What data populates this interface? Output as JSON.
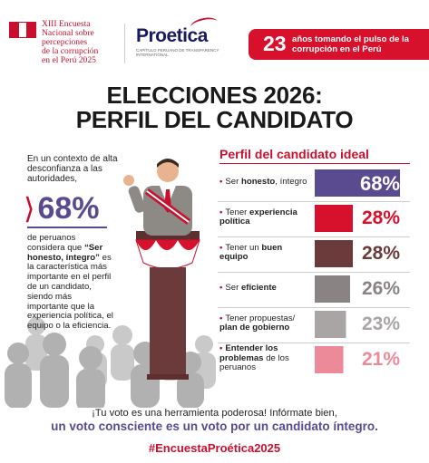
{
  "header": {
    "survey_lines": [
      "XIII Encuesta",
      "Nacional sobre",
      "percepciones",
      "de la corrupción",
      "en el Perú 2025"
    ],
    "logo_text": "Proetica",
    "logo_sub": "CAPÍTULO PERUANO DE TRANSPARENCY INTERNATIONAL",
    "banner_number": "23",
    "banner_text": "años tomando el pulso de la corrupción en el Perú",
    "banner_color": "#d7102c"
  },
  "title_line1": "ELECCIONES 2026:",
  "title_line2": "PERFIL DEL CANDIDATO",
  "left": {
    "intro": "En un contexto de alta desconfianza a las autoridades,",
    "highlight": "68%",
    "body_pre": "de peruanos considera que ",
    "body_bold": "“Ser honesto, íntegro”",
    "body_post": " es la característica más importante en el perfil de un candidato, siendo más importante que la experiencia política, el equipo o la eficiencia."
  },
  "chart_data": {
    "type": "bar",
    "title": "Perfil del candidato ideal",
    "orientation": "horizontal",
    "categories": [
      "Ser honesto, íntegro",
      "Tener experiencia política",
      "Tener un buen equipo",
      "Ser eficiente",
      "Tener propuestas/ plan de gobierno",
      "Entender los problemas de los peruanos"
    ],
    "values": [
      68,
      28,
      28,
      26,
      23,
      21
    ],
    "value_labels": [
      "68%",
      "28%",
      "28%",
      "26%",
      "23%",
      "21%"
    ],
    "colors": [
      "#5a4a8f",
      "#d7102c",
      "#6b3a3a",
      "#8a8383",
      "#aaa5a5",
      "#ec8a9a"
    ],
    "label_parts": [
      {
        "pre": "Ser ",
        "bold": "honesto",
        "post": ", íntegro"
      },
      {
        "pre": "Tener ",
        "bold": "experiencia política",
        "post": ""
      },
      {
        "pre": "Tener un ",
        "bold": "buen equipo",
        "post": ""
      },
      {
        "pre": "Ser ",
        "bold": "eficiente",
        "post": ""
      },
      {
        "pre": "Tener propuestas/ ",
        "bold": "plan de gobierno",
        "post": ""
      },
      {
        "pre": "",
        "bold": "Entender los problemas",
        "post": " de los peruanos"
      }
    ]
  },
  "footer": {
    "line1": "¡Tu voto es una herramienta poderosa! Infórmate bien,",
    "line2": "un voto consciente es un voto por un candidato íntegro.",
    "hashtag": "#EncuestaProética2025"
  }
}
